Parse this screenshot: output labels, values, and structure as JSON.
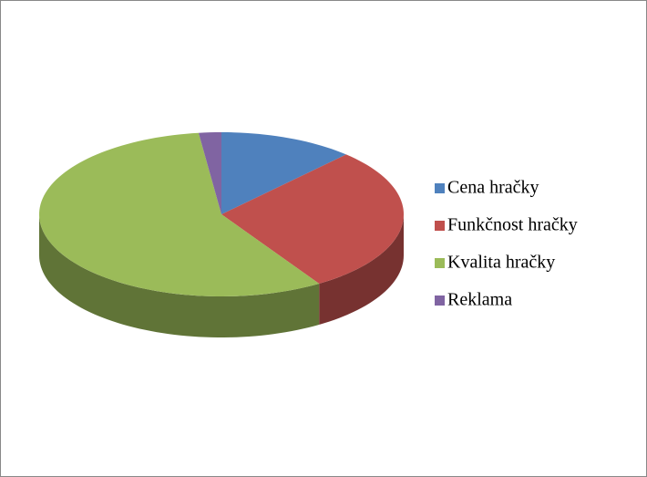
{
  "chart_data": {
    "type": "pie",
    "legend": "right",
    "categories": [
      "Cena hračky",
      "Funkčnost hračky",
      "Kvalita hračky",
      "Reklama"
    ],
    "values": [
      12,
      29,
      57,
      2
    ],
    "colors": [
      "#4f81bd",
      "#c0504d",
      "#9bbb59",
      "#8064a2"
    ]
  }
}
